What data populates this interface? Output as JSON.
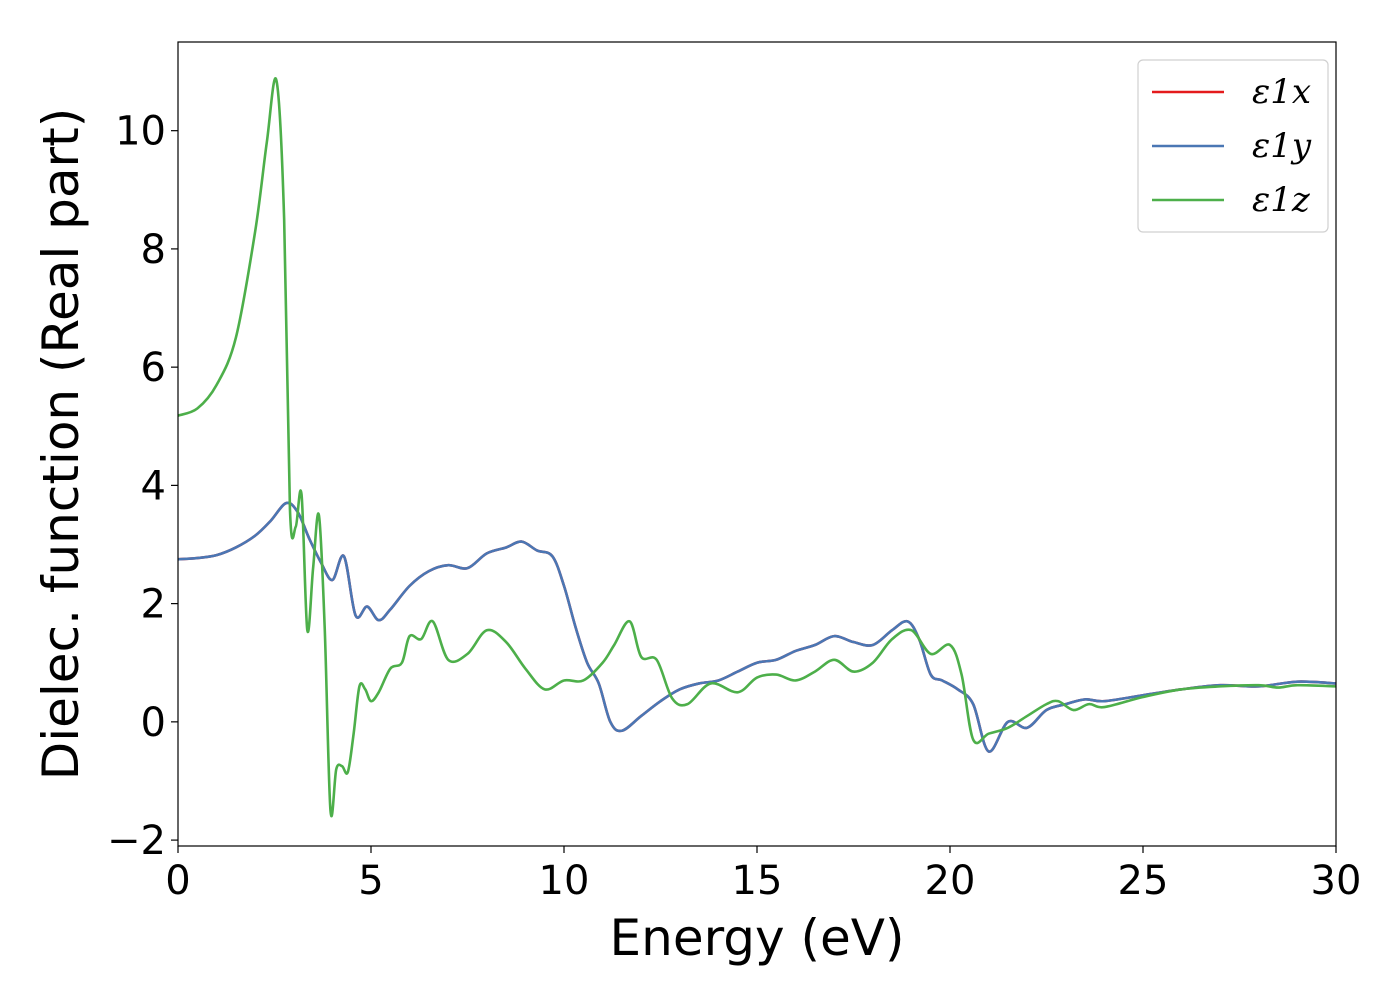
{
  "chart_data": {
    "type": "line",
    "title": "",
    "xlabel": "Energy (eV)",
    "ylabel": "Dielec. function (Real part)",
    "xlim": [
      0,
      30
    ],
    "ylim": [
      -2.1,
      11.5
    ],
    "xticks": [
      0,
      5,
      10,
      15,
      20,
      25,
      30
    ],
    "xtick_labels": [
      "0",
      "5",
      "10",
      "15",
      "20",
      "25",
      "30"
    ],
    "yticks": [
      -2,
      0,
      2,
      4,
      6,
      8,
      10
    ],
    "ytick_labels": [
      "−2",
      "0",
      "2",
      "4",
      "6",
      "8",
      "10"
    ],
    "grid": false,
    "legend_position": "top-right",
    "series": [
      {
        "name": "ε1x",
        "color": "#e41a1c",
        "x": [
          0,
          0.5,
          1.0,
          1.5,
          2.0,
          2.4,
          2.8,
          3.1,
          3.4,
          3.7,
          4.0,
          4.3,
          4.6,
          4.9,
          5.2,
          5.5,
          6.0,
          6.5,
          7.0,
          7.5,
          8.0,
          8.5,
          8.9,
          9.3,
          9.7,
          10.0,
          10.3,
          10.6,
          10.9,
          11.2,
          11.5,
          12.0,
          12.5,
          13.0,
          13.5,
          14.0,
          14.5,
          15.0,
          15.5,
          16.0,
          16.5,
          17.0,
          17.5,
          18.0,
          18.5,
          18.9,
          19.2,
          19.5,
          19.8,
          20.2,
          20.6,
          21.0,
          21.5,
          22.0,
          22.5,
          23.0,
          23.5,
          24.0,
          25.0,
          26.0,
          27.0,
          28.0,
          29.0,
          30.0
        ],
        "y": [
          2.75,
          2.77,
          2.82,
          2.95,
          3.15,
          3.4,
          3.7,
          3.55,
          3.1,
          2.7,
          2.4,
          2.8,
          1.8,
          1.95,
          1.72,
          1.9,
          2.3,
          2.55,
          2.65,
          2.6,
          2.85,
          2.95,
          3.05,
          2.9,
          2.8,
          2.3,
          1.6,
          1.0,
          0.65,
          0.0,
          -0.15,
          0.1,
          0.35,
          0.55,
          0.65,
          0.7,
          0.85,
          1.0,
          1.05,
          1.2,
          1.3,
          1.45,
          1.35,
          1.3,
          1.55,
          1.7,
          1.4,
          0.8,
          0.7,
          0.55,
          0.3,
          -0.5,
          0.0,
          -0.1,
          0.2,
          0.3,
          0.38,
          0.35,
          0.45,
          0.55,
          0.62,
          0.6,
          0.68,
          0.65
        ]
      },
      {
        "name": "ε1y",
        "color": "#4a77b4",
        "x": [
          0,
          0.5,
          1.0,
          1.5,
          2.0,
          2.4,
          2.8,
          3.1,
          3.4,
          3.7,
          4.0,
          4.3,
          4.6,
          4.9,
          5.2,
          5.5,
          6.0,
          6.5,
          7.0,
          7.5,
          8.0,
          8.5,
          8.9,
          9.3,
          9.7,
          10.0,
          10.3,
          10.6,
          10.9,
          11.2,
          11.5,
          12.0,
          12.5,
          13.0,
          13.5,
          14.0,
          14.5,
          15.0,
          15.5,
          16.0,
          16.5,
          17.0,
          17.5,
          18.0,
          18.5,
          18.9,
          19.2,
          19.5,
          19.8,
          20.2,
          20.6,
          21.0,
          21.5,
          22.0,
          22.5,
          23.0,
          23.5,
          24.0,
          25.0,
          26.0,
          27.0,
          28.0,
          29.0,
          30.0
        ],
        "y": [
          2.75,
          2.77,
          2.82,
          2.95,
          3.15,
          3.4,
          3.7,
          3.55,
          3.1,
          2.7,
          2.4,
          2.8,
          1.8,
          1.95,
          1.72,
          1.9,
          2.3,
          2.55,
          2.65,
          2.6,
          2.85,
          2.95,
          3.05,
          2.9,
          2.8,
          2.3,
          1.6,
          1.0,
          0.65,
          0.0,
          -0.15,
          0.1,
          0.35,
          0.55,
          0.65,
          0.7,
          0.85,
          1.0,
          1.05,
          1.2,
          1.3,
          1.45,
          1.35,
          1.3,
          1.55,
          1.7,
          1.4,
          0.8,
          0.7,
          0.55,
          0.3,
          -0.5,
          0.0,
          -0.1,
          0.2,
          0.3,
          0.38,
          0.35,
          0.45,
          0.55,
          0.62,
          0.6,
          0.68,
          0.65
        ]
      },
      {
        "name": "ε1z",
        "color": "#4daf4a",
        "x": [
          0,
          0.5,
          1.0,
          1.5,
          2.0,
          2.3,
          2.55,
          2.75,
          2.9,
          3.05,
          3.2,
          3.35,
          3.5,
          3.65,
          3.8,
          3.95,
          4.1,
          4.25,
          4.4,
          4.55,
          4.7,
          4.85,
          5.0,
          5.2,
          5.5,
          5.8,
          6.0,
          6.3,
          6.6,
          7.0,
          7.5,
          8.0,
          8.5,
          9.0,
          9.5,
          10.0,
          10.5,
          11.0,
          11.3,
          11.7,
          12.0,
          12.4,
          12.8,
          13.2,
          13.8,
          14.5,
          15.0,
          15.5,
          16.0,
          16.5,
          17.0,
          17.5,
          18.0,
          18.5,
          19.0,
          19.5,
          20.0,
          20.3,
          20.6,
          21.0,
          21.5,
          22.0,
          22.5,
          22.8,
          23.2,
          23.6,
          24.0,
          25.0,
          26.0,
          27.0,
          28.0,
          28.5,
          29.0,
          30.0
        ],
        "y": [
          5.18,
          5.3,
          5.7,
          6.5,
          8.3,
          9.8,
          10.85,
          8.5,
          3.6,
          3.3,
          3.85,
          1.55,
          2.6,
          3.5,
          1.6,
          -1.5,
          -0.8,
          -0.75,
          -0.85,
          -0.2,
          0.6,
          0.55,
          0.35,
          0.5,
          0.9,
          1.0,
          1.45,
          1.4,
          1.7,
          1.05,
          1.15,
          1.55,
          1.35,
          0.9,
          0.55,
          0.7,
          0.7,
          1.0,
          1.3,
          1.7,
          1.1,
          1.05,
          0.4,
          0.3,
          0.65,
          0.5,
          0.75,
          0.8,
          0.7,
          0.85,
          1.05,
          0.85,
          1.0,
          1.4,
          1.55,
          1.15,
          1.3,
          0.8,
          -0.3,
          -0.2,
          -0.1,
          0.1,
          0.3,
          0.35,
          0.2,
          0.3,
          0.25,
          0.42,
          0.55,
          0.6,
          0.62,
          0.58,
          0.62,
          0.6
        ]
      }
    ]
  }
}
